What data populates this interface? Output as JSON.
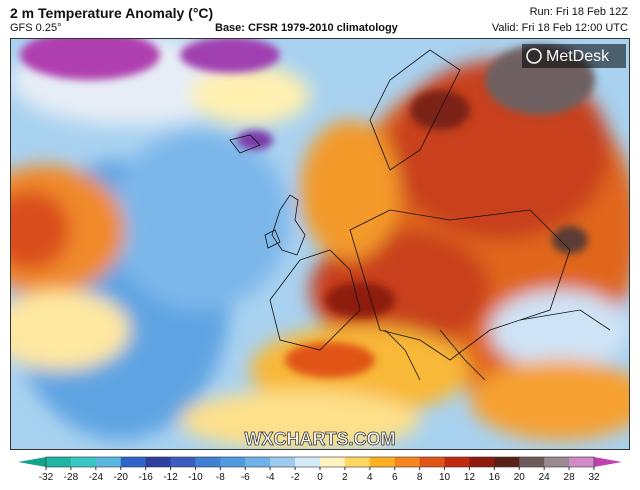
{
  "header": {
    "title": "2 m Temperature Anomaly (°C)",
    "model": "GFS 0.25°",
    "base": "Base: CFSR 1979-2010 climatology",
    "run": "Run: Fri 18 Feb 12Z",
    "valid": "Valid: Fri 18 Feb 12:00 UTC"
  },
  "logo": "MetDesk",
  "watermark": "WXCHARTS.COM",
  "colorbar": {
    "ticks": [
      -32,
      -28,
      -24,
      -20,
      -16,
      -12,
      -10,
      -8,
      -6,
      -4,
      -2,
      0,
      2,
      4,
      6,
      8,
      10,
      12,
      16,
      20,
      24,
      28,
      32
    ],
    "colors": [
      "#13a28a",
      "#1fb6a2",
      "#38c6c6",
      "#5ab8e0",
      "#2f64c8",
      "#2d3fa0",
      "#3a5cc0",
      "#3f7fd4",
      "#4f9ae0",
      "#70b2e8",
      "#9ccbef",
      "#d6ebf8",
      "#fff3c0",
      "#ffd860",
      "#ffb020",
      "#f68420",
      "#e05418",
      "#c02a10",
      "#8e1a10",
      "#5a2018",
      "#6e5a5a",
      "#9a8a90",
      "#d08ac8",
      "#c040b0"
    ]
  }
}
